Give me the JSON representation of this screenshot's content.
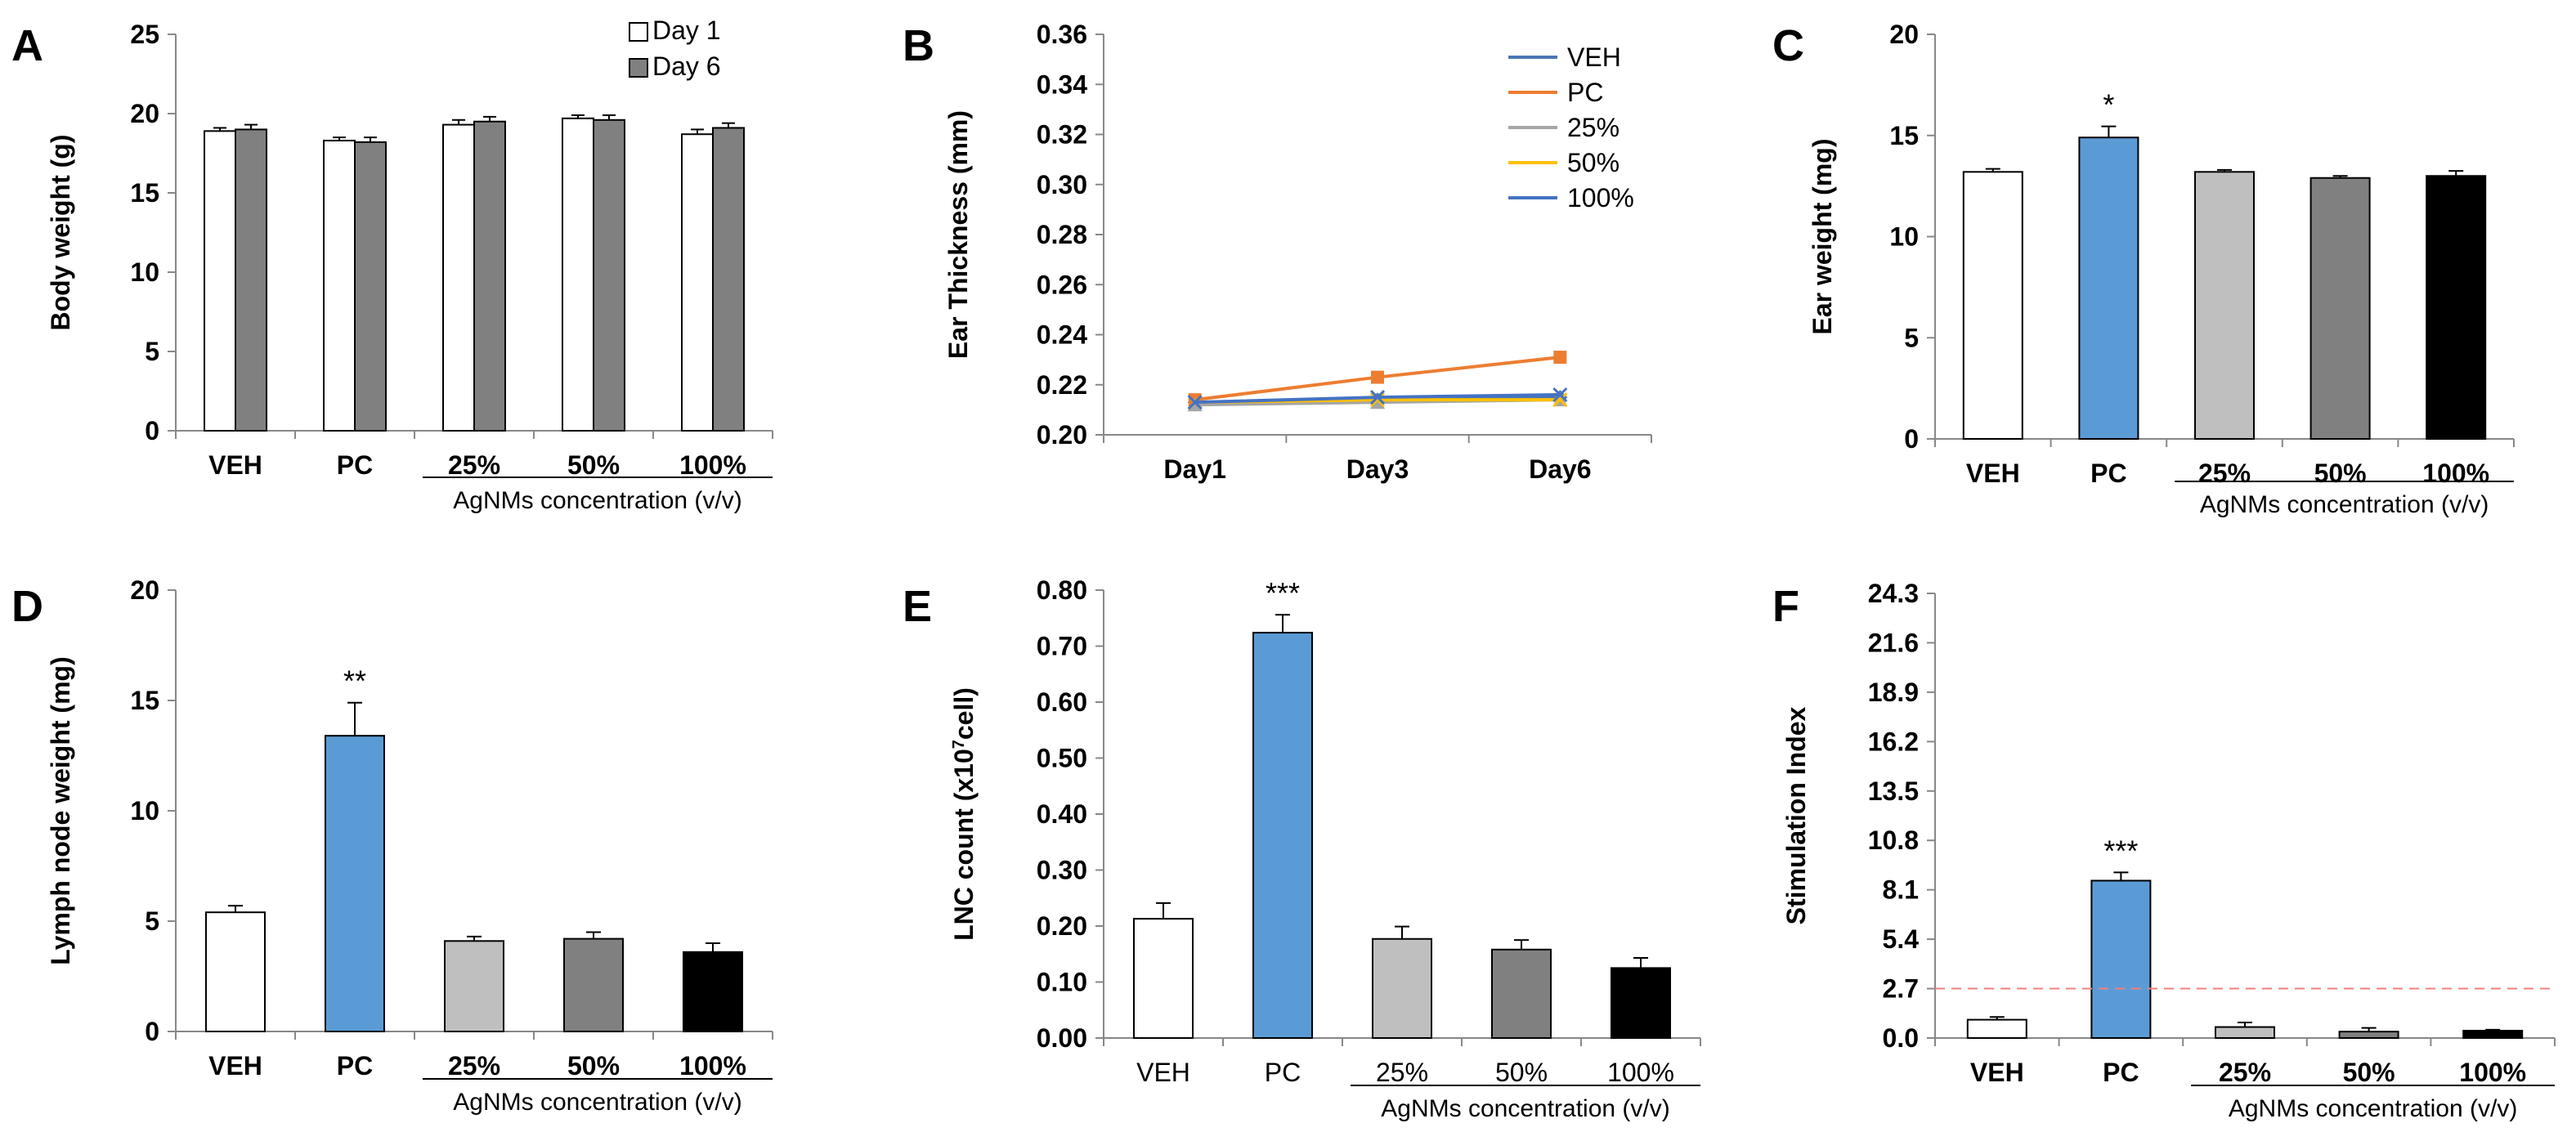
{
  "chart_data": [
    {
      "panel": "A",
      "type": "bar",
      "ylabel": "Body weight (g)",
      "ylim": [
        0,
        25
      ],
      "yticks": [
        0,
        5,
        10,
        15,
        20,
        25
      ],
      "ytick_labels": [
        "0",
        "5",
        "10",
        "15",
        "20",
        "25"
      ],
      "categories": [
        "VEH",
        "PC",
        "25%",
        "50%",
        "100%"
      ],
      "group_label": "AgNMs concentration (v/v)",
      "legend_position": "top-right",
      "series": [
        {
          "name": "Day 1",
          "values": [
            18.9,
            18.3,
            19.3,
            19.7,
            18.7
          ],
          "errors": [
            0.2,
            0.2,
            0.3,
            0.2,
            0.3
          ],
          "color": "#ffffff"
        },
        {
          "name": "Day 6",
          "values": [
            19.0,
            18.2,
            19.5,
            19.6,
            19.1
          ],
          "errors": [
            0.3,
            0.3,
            0.3,
            0.3,
            0.3
          ],
          "color": "#808080"
        }
      ]
    },
    {
      "panel": "B",
      "type": "line",
      "ylabel": "Ear Thickness (mm)",
      "ylim": [
        0.2,
        0.36
      ],
      "yticks": [
        0.2,
        0.22,
        0.24,
        0.26,
        0.28,
        0.3,
        0.32,
        0.34,
        0.36
      ],
      "ytick_labels": [
        "0.20",
        "0.22",
        "0.24",
        "0.26",
        "0.28",
        "0.30",
        "0.32",
        "0.34",
        "0.36"
      ],
      "categories": [
        "Day1",
        "Day3",
        "Day6"
      ],
      "legend_position": "top-right",
      "series": [
        {
          "name": "VEH",
          "values": [
            0.213,
            0.214,
            0.215
          ],
          "color": "#4a77b4",
          "marker": "diamond"
        },
        {
          "name": "PC",
          "values": [
            0.214,
            0.223,
            0.231
          ],
          "color": "#ed7d31",
          "marker": "square"
        },
        {
          "name": "25%",
          "values": [
            0.212,
            0.213,
            0.214
          ],
          "color": "#a5a5a5",
          "marker": "triangle"
        },
        {
          "name": "50%",
          "values": [
            0.213,
            0.214,
            0.214
          ],
          "color": "#ffc000",
          "marker": "x"
        },
        {
          "name": "100%",
          "values": [
            0.213,
            0.215,
            0.216
          ],
          "color": "#4472c4",
          "marker": "star"
        }
      ]
    },
    {
      "panel": "C",
      "type": "bar",
      "ylabel": "Ear weight (mg)",
      "ylim": [
        0,
        20
      ],
      "yticks": [
        0,
        5,
        10,
        15,
        20
      ],
      "ytick_labels": [
        "0",
        "5",
        "10",
        "15",
        "20"
      ],
      "categories": [
        "VEH",
        "PC",
        "25%",
        "50%",
        "100%"
      ],
      "group_label": "AgNMs concentration (v/v)",
      "values": [
        13.2,
        14.9,
        13.2,
        12.9,
        13.0
      ],
      "errors": [
        0.15,
        0.55,
        0.1,
        0.1,
        0.25
      ],
      "colors": [
        "#ffffff",
        "#5b9bd5",
        "#bfbfbf",
        "#808080",
        "#000000"
      ],
      "annotations": [
        "",
        "*",
        "",
        "",
        ""
      ]
    },
    {
      "panel": "D",
      "type": "bar",
      "ylabel": "Lymph node weight (mg)",
      "ylim": [
        0,
        20
      ],
      "yticks": [
        0,
        5,
        10,
        15,
        20
      ],
      "ytick_labels": [
        "0",
        "5",
        "10",
        "15",
        "20"
      ],
      "categories": [
        "VEH",
        "PC",
        "25%",
        "50%",
        "100%"
      ],
      "group_label": "AgNMs concentration (v/v)",
      "values": [
        5.4,
        13.4,
        4.1,
        4.2,
        3.6
      ],
      "errors": [
        0.3,
        1.5,
        0.2,
        0.3,
        0.4
      ],
      "colors": [
        "#ffffff",
        "#5b9bd5",
        "#bfbfbf",
        "#808080",
        "#000000"
      ],
      "annotations": [
        "",
        "**",
        "",
        "",
        ""
      ]
    },
    {
      "panel": "E",
      "type": "bar",
      "ylabel": "LNC count (x10",
      "ylabel_sup": "7",
      "ylabel_tail": "cell)",
      "ylim": [
        0,
        0.8
      ],
      "yticks": [
        0,
        0.1,
        0.2,
        0.3,
        0.4,
        0.5,
        0.6,
        0.7,
        0.8
      ],
      "ytick_labels": [
        "0.00",
        "0.10",
        "0.20",
        "0.30",
        "0.40",
        "0.50",
        "0.60",
        "0.70",
        "0.80"
      ],
      "categories": [
        "VEH",
        "PC",
        "25%",
        "50%",
        "100%"
      ],
      "group_label": "AgNMs concentration (v/v)",
      "values": [
        0.213,
        0.724,
        0.177,
        0.158,
        0.125
      ],
      "errors": [
        0.028,
        0.032,
        0.022,
        0.017,
        0.018
      ],
      "colors": [
        "#ffffff",
        "#5b9bd5",
        "#bfbfbf",
        "#808080",
        "#000000"
      ],
      "annotations": [
        "",
        "***",
        "",
        "",
        ""
      ]
    },
    {
      "panel": "F",
      "type": "bar",
      "ylabel": "Stimulation Index",
      "ylim": [
        0,
        24.3
      ],
      "yticks": [
        0,
        2.7,
        5.4,
        8.1,
        10.8,
        13.5,
        16.2,
        18.9,
        21.6,
        24.3
      ],
      "ytick_labels": [
        "0.0",
        "2.7",
        "5.4",
        "8.1",
        "10.8",
        "13.5",
        "16.2",
        "18.9",
        "21.6",
        "24.3"
      ],
      "categories": [
        "VEH",
        "PC",
        "25%",
        "50%",
        "100%"
      ],
      "group_label": "AgNMs concentration (v/v)",
      "values": [
        1.0,
        8.6,
        0.6,
        0.35,
        0.4
      ],
      "errors": [
        0.15,
        0.45,
        0.25,
        0.2,
        0.05
      ],
      "colors": [
        "#ffffff",
        "#5b9bd5",
        "#bfbfbf",
        "#808080",
        "#000000"
      ],
      "annotations": [
        "",
        "***",
        "",
        "",
        ""
      ],
      "reference_line": {
        "value": 2.7,
        "color": "#f08080"
      }
    }
  ]
}
